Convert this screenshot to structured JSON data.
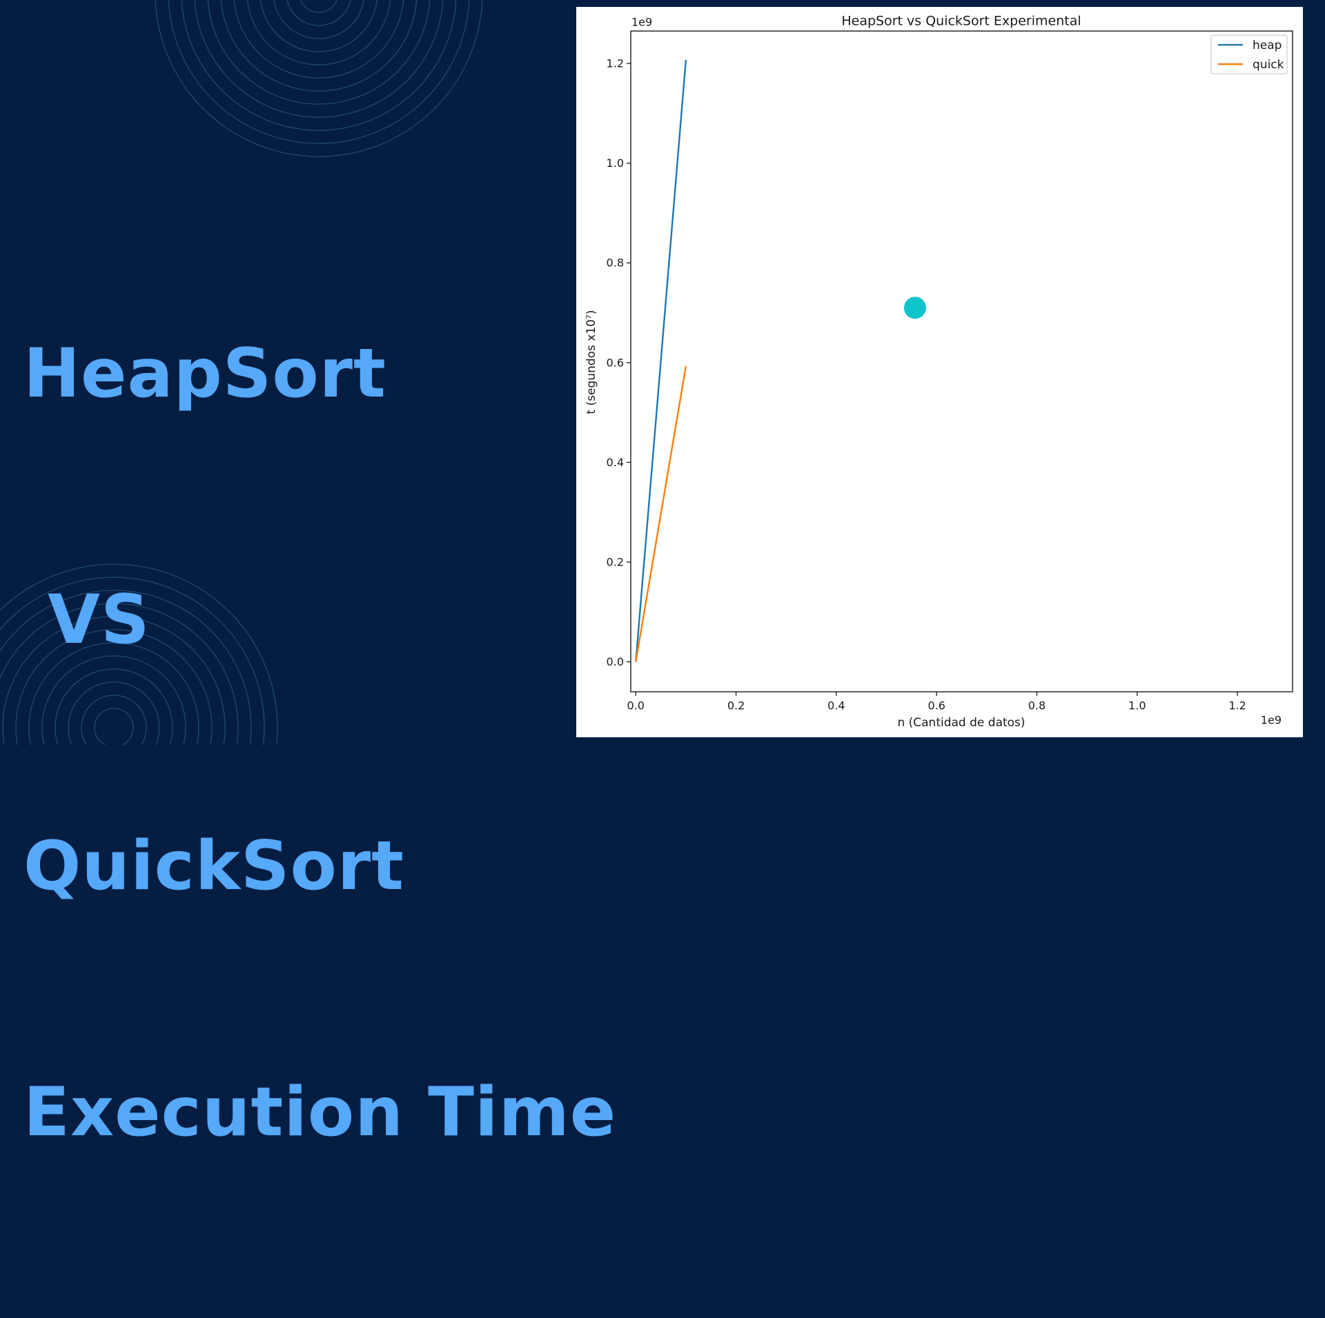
{
  "slide": {
    "title_lines": [
      "HeapSort",
      " VS",
      "QuickSort",
      "Execution Time"
    ]
  },
  "colors": {
    "background": "#061d42",
    "headline": "#56a8f8",
    "ring_stroke": "#1f4a6e",
    "marker_dot": "#10c4cc",
    "chart_background": "#ffffff"
  },
  "chart_data": {
    "type": "line",
    "title": "HeapSort vs QuickSort Experimental",
    "xlabel": "n (Cantidad de datos)",
    "ylabel": "t (segundos x10⁷)",
    "x_offset_label": "1e9",
    "y_offset_label": "1e9",
    "xlim": [
      -0.01,
      1.31
    ],
    "ylim": [
      -0.06,
      1.265
    ],
    "x_ticks": [
      0.0,
      0.2,
      0.4,
      0.6,
      0.8,
      1.0,
      1.2
    ],
    "x_tick_labels": [
      "0.0",
      "0.2",
      "0.4",
      "0.6",
      "0.8",
      "1.0",
      "1.2"
    ],
    "y_ticks": [
      0.0,
      0.2,
      0.4,
      0.6,
      0.8,
      1.0,
      1.2
    ],
    "y_tick_labels": [
      "0.0",
      "0.2",
      "0.4",
      "0.6",
      "0.8",
      "1.0",
      "1.2"
    ],
    "grid": false,
    "legend_position": "top-right",
    "series": [
      {
        "name": "heap",
        "color": "#1f77b4",
        "x": [
          0.0,
          0.1
        ],
        "y": [
          0.0,
          1.207
        ]
      },
      {
        "name": "quick",
        "color": "#ff7f0e",
        "x": [
          0.0,
          0.1
        ],
        "y": [
          0.0,
          0.593
        ]
      }
    ],
    "annotation_marker": {
      "x": 0.557,
      "y": 0.71,
      "color": "#10c4cc"
    }
  }
}
